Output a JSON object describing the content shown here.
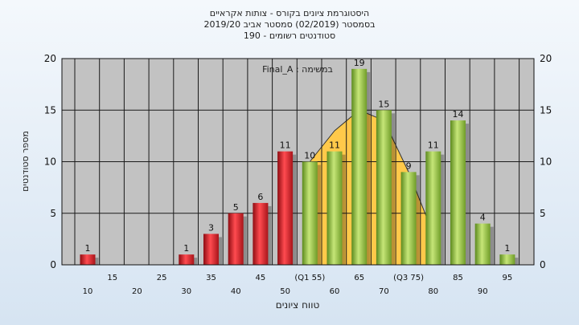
{
  "chart_data": {
    "type": "bar",
    "title_lines": [
      "היסטוגרמת ציונים בקורס - צותות אקראיים",
      "בסמסטר  (02/2019)  סמסטר אביב 2019/20",
      "סטודנטים רשומים - 190"
    ],
    "annotation": "Final_A : במשימה",
    "xlabel": "טווח ציונים",
    "ylabel": "מספר סטודנטים",
    "ylim": [
      0,
      20
    ],
    "yticks": [
      0,
      5,
      10,
      15,
      20
    ],
    "x_tick_labels": [
      {
        "label": "10",
        "pos": 10,
        "row": 2
      },
      {
        "label": "15",
        "pos": 15,
        "row": 1
      },
      {
        "label": "20",
        "pos": 20,
        "row": 2
      },
      {
        "label": "25",
        "pos": 25,
        "row": 1
      },
      {
        "label": "30",
        "pos": 30,
        "row": 2
      },
      {
        "label": "35",
        "pos": 35,
        "row": 1
      },
      {
        "label": "40",
        "pos": 40,
        "row": 2
      },
      {
        "label": "45",
        "pos": 45,
        "row": 1
      },
      {
        "label": "50",
        "pos": 50,
        "row": 2
      },
      {
        "label": "(Q1 55)",
        "pos": 55,
        "row": 1
      },
      {
        "label": "60",
        "pos": 60,
        "row": 2
      },
      {
        "label": "65",
        "pos": 65,
        "row": 1
      },
      {
        "label": "70",
        "pos": 70,
        "row": 2
      },
      {
        "label": "(Q3 75)",
        "pos": 75,
        "row": 1
      },
      {
        "label": "80",
        "pos": 80,
        "row": 2
      },
      {
        "label": "85",
        "pos": 85,
        "row": 1
      },
      {
        "label": "90",
        "pos": 90,
        "row": 2
      },
      {
        "label": "95",
        "pos": 95,
        "row": 1
      }
    ],
    "bars": [
      {
        "pos": 10,
        "value": 1,
        "group": "fail"
      },
      {
        "pos": 15,
        "value": 0,
        "group": "fail"
      },
      {
        "pos": 20,
        "value": 0,
        "group": "fail"
      },
      {
        "pos": 25,
        "value": 0,
        "group": "fail"
      },
      {
        "pos": 30,
        "value": 1,
        "group": "fail"
      },
      {
        "pos": 35,
        "value": 3,
        "group": "fail"
      },
      {
        "pos": 40,
        "value": 5,
        "group": "fail"
      },
      {
        "pos": 45,
        "value": 6,
        "group": "fail"
      },
      {
        "pos": 50,
        "value": 11,
        "group": "fail"
      },
      {
        "pos": 55,
        "value": 10,
        "group": "pass"
      },
      {
        "pos": 60,
        "value": 11,
        "group": "pass"
      },
      {
        "pos": 65,
        "value": 19,
        "group": "pass"
      },
      {
        "pos": 70,
        "value": 15,
        "group": "pass"
      },
      {
        "pos": 75,
        "value": 9,
        "group": "pass"
      },
      {
        "pos": 80,
        "value": 11,
        "group": "pass"
      },
      {
        "pos": 85,
        "value": 14,
        "group": "pass"
      },
      {
        "pos": 90,
        "value": 4,
        "group": "pass"
      },
      {
        "pos": 95,
        "value": 1,
        "group": "pass"
      }
    ],
    "distribution_curve": [
      {
        "pos": 55,
        "value": 10
      },
      {
        "pos": 60,
        "value": 13
      },
      {
        "pos": 65,
        "value": 15
      },
      {
        "pos": 70,
        "value": 14
      },
      {
        "pos": 75,
        "value": 9
      },
      {
        "pos": 80,
        "value": 3
      }
    ],
    "colors": {
      "fail": "#e0242c",
      "pass": "#8fc13c",
      "curve": "#ffc94a",
      "plot_bg": "#c2c2c2",
      "grid": "#1a1a1a"
    },
    "grid": true
  }
}
